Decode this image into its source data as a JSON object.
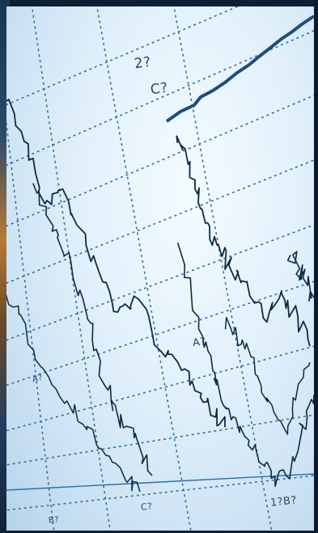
{
  "photo": {
    "labels": {
      "top_a": "2?",
      "top_b": "C?",
      "mid_a": "A?",
      "left_a": "A?",
      "bottom_a": "C?",
      "bottom_b": "1?B?",
      "bottom_c": "B?"
    },
    "colors": {
      "screen": "#e3f1fb",
      "grid": "#2f6fa3",
      "trace": "#0e2a45"
    }
  }
}
